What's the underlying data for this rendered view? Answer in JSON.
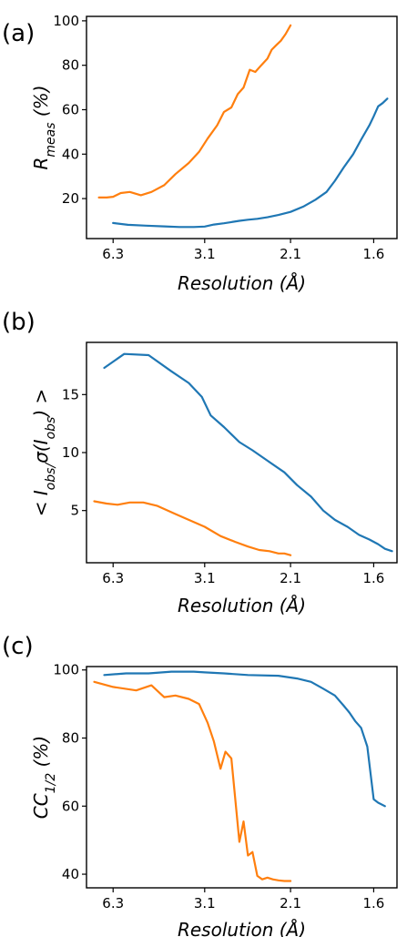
{
  "colors": {
    "blue": "#1f77b4",
    "orange": "#ff7f0e"
  },
  "chart_data": [
    {
      "type": "line",
      "panel_label": "(a)",
      "xlabel": "Resolution (Å)",
      "ylabel": "R_meas (%)",
      "ylim": [
        2,
        102
      ],
      "yticks": [
        20,
        40,
        60,
        80,
        100
      ],
      "xtick_labels": [
        "6.3",
        "3.1",
        "2.1",
        "1.6"
      ],
      "series": [
        {
          "color": "blue",
          "x": [
            6.3,
            5.4,
            4.6,
            4.0,
            3.6,
            3.3,
            3.1,
            2.95,
            2.8,
            2.7,
            2.6,
            2.5,
            2.4,
            2.3,
            2.2,
            2.1,
            2.0,
            1.92,
            1.85,
            1.8,
            1.75,
            1.7,
            1.66,
            1.62,
            1.6,
            1.58,
            1.56,
            1.54
          ],
          "y": [
            9,
            8.2,
            7.8,
            7.5,
            7.2,
            7.2,
            7.4,
            8.3,
            8.9,
            9.4,
            10,
            10.5,
            10.9,
            11.6,
            12.6,
            14,
            16.5,
            19.5,
            23,
            28,
            34,
            40,
            46.5,
            53,
            57,
            61.5,
            63,
            65
          ]
        },
        {
          "color": "orange",
          "x": [
            7.5,
            6.8,
            6.3,
            5.8,
            5.3,
            4.8,
            4.4,
            4.0,
            3.7,
            3.4,
            3.2,
            3.05,
            2.9,
            2.8,
            2.7,
            2.62,
            2.55,
            2.48,
            2.42,
            2.36,
            2.3,
            2.26,
            2.22,
            2.18,
            2.14,
            2.1
          ],
          "y": [
            20.5,
            20.5,
            20.8,
            22.5,
            23,
            21.5,
            23,
            26,
            31,
            36,
            41,
            47,
            53,
            59,
            61,
            67,
            70,
            78,
            77,
            80,
            83,
            87,
            89,
            91,
            94,
            98
          ]
        }
      ]
    },
    {
      "type": "line",
      "panel_label": "(b)",
      "xlabel": "Resolution (Å)",
      "ylabel": "< I_obs/σ(I_obs) >",
      "ylim": [
        0.5,
        19.5
      ],
      "yticks": [
        5,
        10,
        15
      ],
      "xtick_labels": [
        "6.3",
        "3.1",
        "2.1",
        "1.6"
      ],
      "series": [
        {
          "color": "blue",
          "x": [
            7.0,
            5.6,
            4.5,
            3.8,
            3.4,
            3.15,
            3.0,
            2.8,
            2.6,
            2.45,
            2.3,
            2.15,
            2.05,
            1.95,
            1.87,
            1.8,
            1.73,
            1.67,
            1.62,
            1.58,
            1.55,
            1.52
          ],
          "y": [
            17.3,
            18.5,
            18.4,
            17,
            16,
            14.8,
            13.2,
            12.2,
            10.9,
            10.2,
            9.3,
            8.3,
            7.2,
            6.2,
            5,
            4.2,
            3.6,
            2.9,
            2.5,
            2.1,
            1.7,
            1.5
          ]
        },
        {
          "color": "orange",
          "x": [
            8.0,
            6.8,
            6.0,
            5.3,
            4.7,
            4.2,
            3.7,
            3.4,
            3.1,
            2.85,
            2.65,
            2.5,
            2.38,
            2.28,
            2.2,
            2.15,
            2.1
          ],
          "y": [
            5.8,
            5.6,
            5.5,
            5.7,
            5.7,
            5.4,
            4.7,
            4.2,
            3.6,
            2.8,
            2.3,
            1.9,
            1.6,
            1.5,
            1.3,
            1.3,
            1.15
          ]
        }
      ]
    },
    {
      "type": "line",
      "panel_label": "(c)",
      "xlabel": "Resolution (Å)",
      "ylabel": "CC_1/2 (%)",
      "ylim": [
        36,
        101
      ],
      "yticks": [
        40,
        60,
        80,
        100
      ],
      "xtick_labels": [
        "6.3",
        "3.1",
        "2.1",
        "1.6"
      ],
      "series": [
        {
          "color": "blue",
          "x": [
            7.0,
            5.5,
            4.5,
            3.8,
            3.3,
            3.1,
            2.8,
            2.5,
            2.2,
            2.05,
            1.95,
            1.87,
            1.8,
            1.75,
            1.72,
            1.69,
            1.66,
            1.63,
            1.6,
            1.58,
            1.55
          ],
          "y": [
            98.5,
            99,
            99,
            99.5,
            99.5,
            99.3,
            99,
            98.5,
            98.3,
            97.5,
            96.5,
            94.5,
            92.5,
            89.5,
            87.5,
            85,
            83,
            77.5,
            62,
            61,
            60
          ]
        },
        {
          "color": "orange",
          "x": [
            8.0,
            6.3,
            5.0,
            4.4,
            4.0,
            3.7,
            3.4,
            3.2,
            3.05,
            2.95,
            2.85,
            2.78,
            2.7,
            2.6,
            2.55,
            2.5,
            2.45,
            2.4,
            2.35,
            2.3,
            2.25,
            2.2,
            2.15,
            2.1
          ],
          "y": [
            96.5,
            95,
            94,
            95.5,
            92,
            92.5,
            91.5,
            90,
            84.5,
            79,
            71,
            76,
            74,
            49.5,
            55.5,
            45.5,
            46.5,
            39.5,
            38.5,
            39,
            38.5,
            38.2,
            38,
            38
          ]
        }
      ]
    }
  ]
}
